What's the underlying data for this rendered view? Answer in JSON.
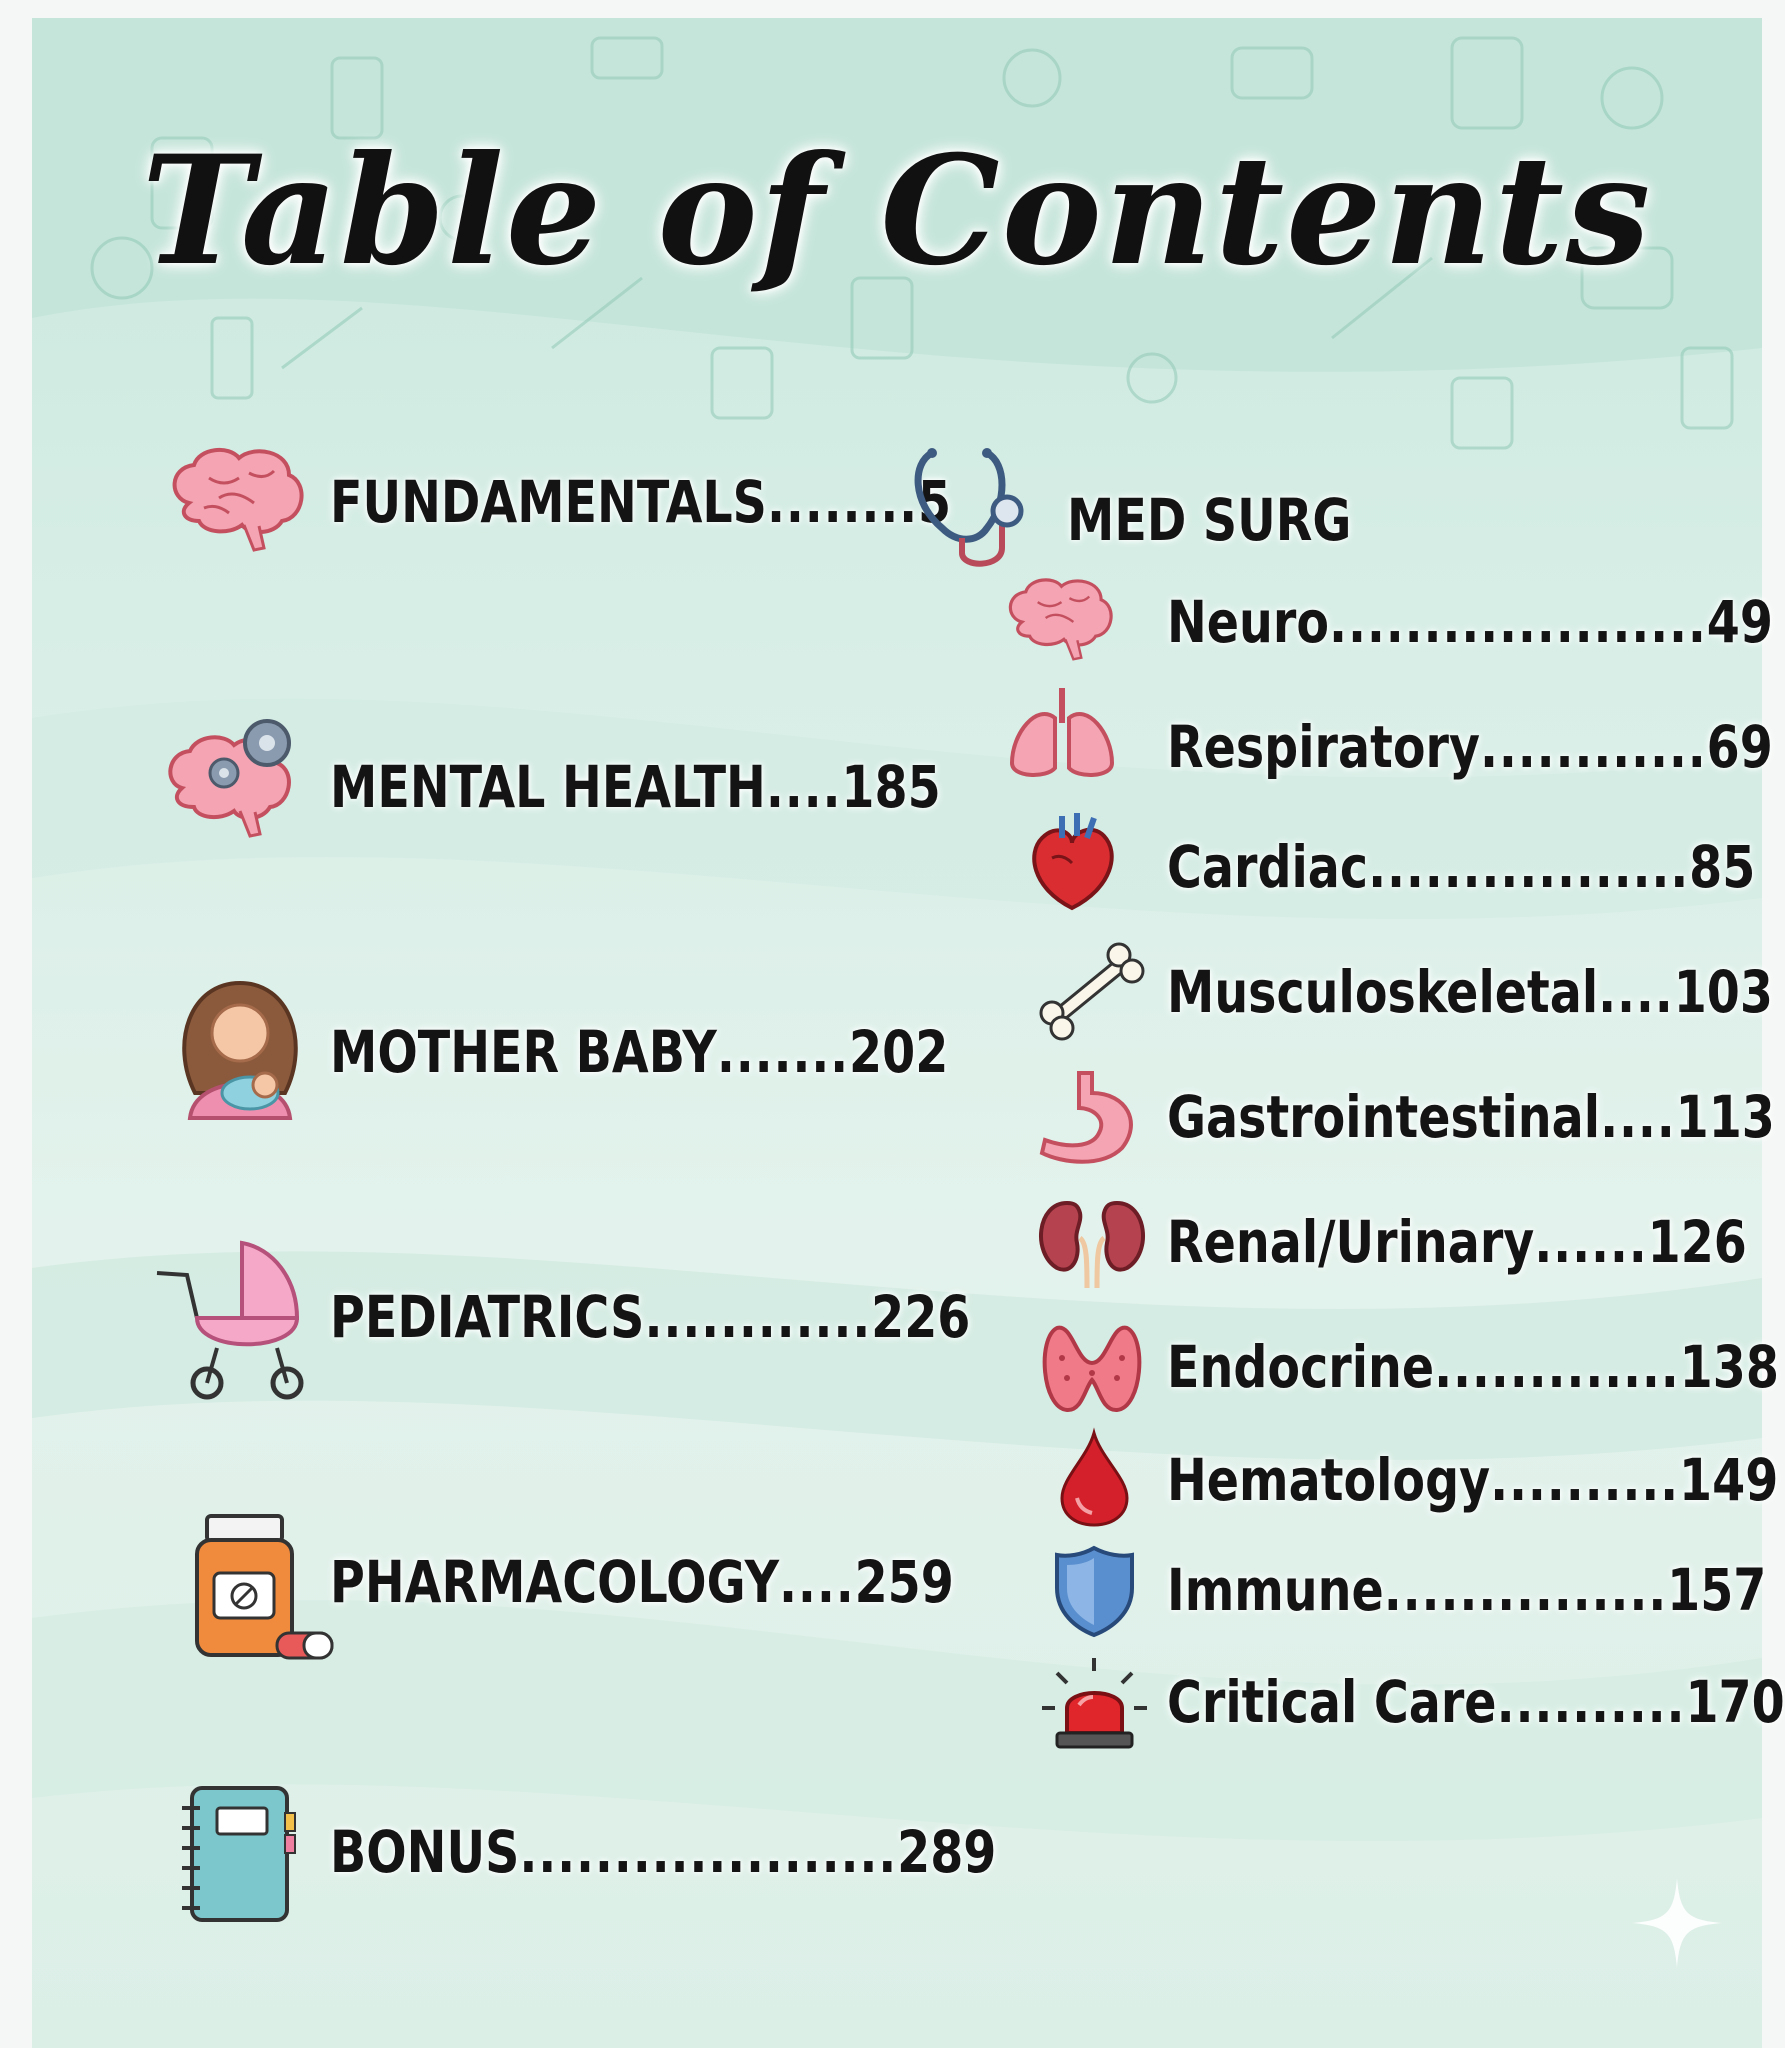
{
  "title": "Table of Contents",
  "left_sections": [
    {
      "icon": "brain-icon",
      "label": "FUNDAMENTALS",
      "dots": "........",
      "page": "5"
    },
    {
      "icon": "brain-gears-icon",
      "label": "MENTAL HEALTH",
      "dots": "....",
      "page": "185"
    },
    {
      "icon": "mother-baby-icon",
      "label": "MOTHER BABY",
      "dots": ".......",
      "page": "202"
    },
    {
      "icon": "baby-stroller-icon",
      "label": "PEDIATRICS",
      "dots": "............",
      "page": "226"
    },
    {
      "icon": "pill-bottle-icon",
      "label": "PHARMACOLOGY",
      "dots": "....",
      "page": "259"
    },
    {
      "icon": "notebook-icon",
      "label": "BONUS",
      "dots": "....................",
      "page": "289"
    }
  ],
  "med_surg": {
    "icon": "stethoscope-icon",
    "label": "MED SURG",
    "items": [
      {
        "icon": "brain-icon",
        "label": "Neuro",
        "dots": "....................",
        "page": "49"
      },
      {
        "icon": "lungs-icon",
        "label": "Respiratory",
        "dots": "............",
        "page": "69"
      },
      {
        "icon": "heart-icon",
        "label": "Cardiac",
        "dots": ".................",
        "page": "85"
      },
      {
        "icon": "bone-icon",
        "label": "Musculoskeletal",
        "dots": "....",
        "page": "103"
      },
      {
        "icon": "stomach-icon",
        "label": "Gastrointestinal",
        "dots": "....",
        "page": "113"
      },
      {
        "icon": "kidneys-icon",
        "label": "Renal/Urinary",
        "dots": "......",
        "page": "126"
      },
      {
        "icon": "thyroid-icon",
        "label": "Endocrine",
        "dots": ".............",
        "page": "138"
      },
      {
        "icon": "blood-drop-icon",
        "label": "Hematology",
        "dots": "..........",
        "page": "149"
      },
      {
        "icon": "shield-icon",
        "label": "Immune",
        "dots": "...............",
        "page": "157"
      },
      {
        "icon": "siren-icon",
        "label": "Critical Care",
        "dots": "..........",
        "page": "170"
      }
    ]
  },
  "colors": {
    "background_mint": "#d7eee6",
    "text": "#141414",
    "icon_pink": "#f08a9a",
    "icon_red": "#d62c2c",
    "icon_blue": "#5a8fcf"
  }
}
